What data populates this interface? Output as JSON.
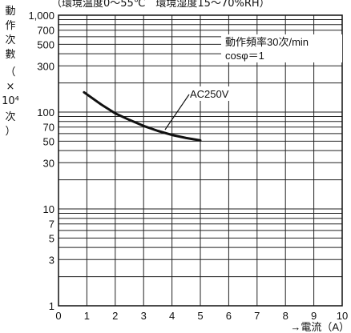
{
  "chart_data": {
    "type": "line",
    "title": "",
    "top_note": "（環境温度0〜55℃　環境湿度15〜70%RH）",
    "ylabel_chars": [
      "動",
      "作",
      "次",
      "數",
      "（",
      "×",
      "10⁴",
      "次",
      "）"
    ],
    "xlabel": "→電流（A）",
    "x_ticks": [
      "0",
      "1",
      "2",
      "3",
      "4",
      "5",
      "6",
      "7",
      "8",
      "9",
      "10"
    ],
    "y_ticks": [
      {
        "value": 1,
        "label": "1"
      },
      {
        "value": 3,
        "label": "3"
      },
      {
        "value": 5,
        "label": "5"
      },
      {
        "value": 7,
        "label": "7"
      },
      {
        "value": 10,
        "label": "10"
      },
      {
        "value": 30,
        "label": "30"
      },
      {
        "value": 50,
        "label": "50"
      },
      {
        "value": 70,
        "label": "70"
      },
      {
        "value": 100,
        "label": "100"
      },
      {
        "value": 300,
        "label": "300"
      },
      {
        "value": 500,
        "label": "500"
      },
      {
        "value": 700,
        "label": "700"
      },
      {
        "value": 1000,
        "label": "1,000"
      }
    ],
    "xlim": [
      0,
      10
    ],
    "ylim": [
      1,
      1000
    ],
    "y_scale": "log",
    "grid": true,
    "note_box": {
      "lines": [
        "動作頻率30次/min",
        "cosφ＝1"
      ],
      "placement": "top-right"
    },
    "series": [
      {
        "name": "AC250V",
        "x": [
          0.9,
          1.5,
          2.0,
          2.5,
          3.0,
          3.5,
          4.0,
          4.5,
          5.0
        ],
        "y": [
          160,
          120,
          97,
          83,
          72,
          64,
          58,
          54,
          51
        ]
      }
    ]
  }
}
